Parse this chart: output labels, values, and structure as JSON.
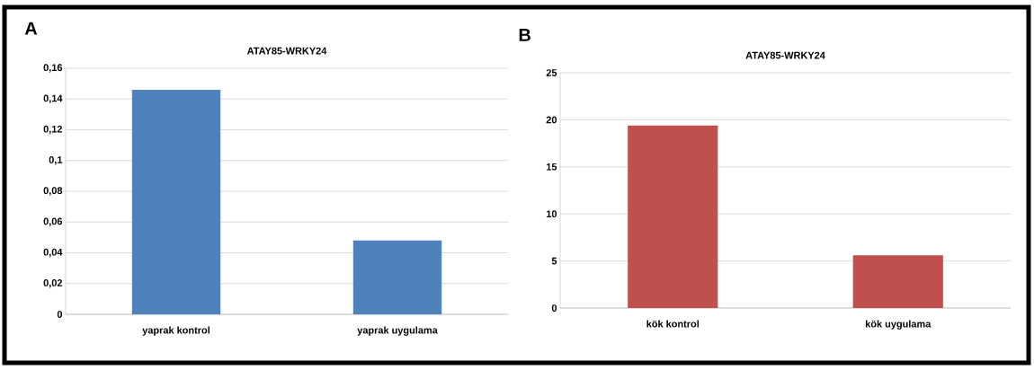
{
  "chart_data": [
    {
      "type": "bar",
      "title": "ATAY85-WRKY24",
      "categories": [
        "yaprak kontrol",
        "yaprak uygulama"
      ],
      "values": [
        0.146,
        0.048
      ],
      "color": "#4f81bd",
      "ylim": [
        0,
        0.16
      ],
      "yticks": [
        {
          "value": 0,
          "label": "0"
        },
        {
          "value": 0.02,
          "label": "0,02"
        },
        {
          "value": 0.04,
          "label": "0,04"
        },
        {
          "value": 0.06,
          "label": "0,06"
        },
        {
          "value": 0.08,
          "label": "0,08"
        },
        {
          "value": 0.1,
          "label": "0,1"
        },
        {
          "value": 0.12,
          "label": "0,12"
        },
        {
          "value": 0.14,
          "label": "0,14"
        },
        {
          "value": 0.16,
          "label": "0,16"
        }
      ],
      "grid": "y",
      "annotations": [
        "A"
      ]
    },
    {
      "type": "bar",
      "title": "ATAY85-WRKY24",
      "categories": [
        "kök kontrol",
        "kök uygulama"
      ],
      "values": [
        19.4,
        5.6
      ],
      "color": "#c0504d",
      "ylim": [
        0,
        25
      ],
      "yticks": [
        0,
        5,
        10,
        15,
        20,
        25
      ],
      "grid": "y",
      "annotations": [
        "B"
      ]
    }
  ]
}
